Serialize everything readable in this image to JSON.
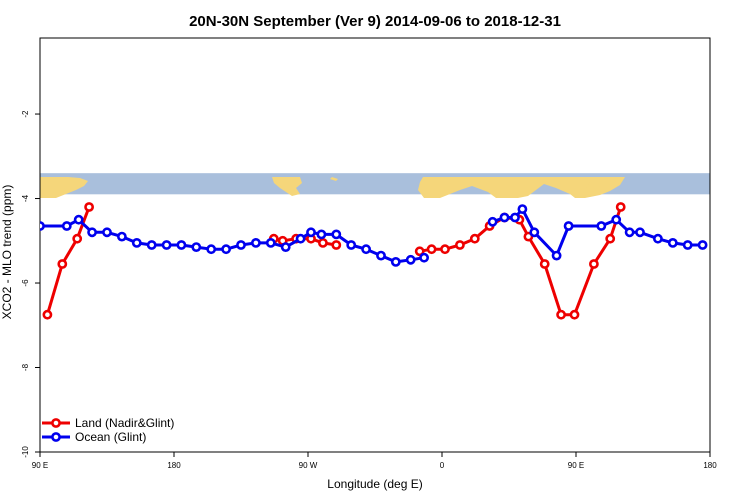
{
  "chart_data": {
    "type": "line",
    "title": "20N-30N September (Ver 9)   2014-09-06 to 2018-12-31",
    "xlabel": "Longitude (deg E)",
    "ylabel": "XCO2 - MLO trend (ppm)",
    "xlim": [
      90,
      540
    ],
    "ylim": [
      -10,
      -0.2
    ],
    "x_ticks": [
      {
        "value": 90,
        "label": "90 E"
      },
      {
        "value": 180,
        "label": "180"
      },
      {
        "value": 270,
        "label": "90 W"
      },
      {
        "value": 360,
        "label": "0"
      },
      {
        "value": 450,
        "label": "90 E"
      },
      {
        "value": 540,
        "label": "180"
      }
    ],
    "y_ticks": [
      {
        "value": -2,
        "label": "-2"
      },
      {
        "value": -4,
        "label": "-4"
      },
      {
        "value": -6,
        "label": "-6"
      },
      {
        "value": -8,
        "label": "-8"
      },
      {
        "value": -10,
        "label": "-10"
      }
    ],
    "map_strip": {
      "y_top": -3.4,
      "y_bottom": -3.9,
      "ocean_color": "#a9bfdc",
      "land_color": "#f5d67a"
    },
    "legend_position": "bottom-left",
    "series": [
      {
        "name": "Land (Nadir&Glint)",
        "color": "#ee0000",
        "segments": [
          [
            [
              95,
              -6.75
            ],
            [
              105,
              -5.55
            ],
            [
              115,
              -4.95
            ],
            [
              123,
              -4.2
            ]
          ],
          [
            [
              247,
              -4.95
            ],
            [
              253,
              -5.0
            ],
            [
              262,
              -4.95
            ],
            [
              272,
              -4.95
            ],
            [
              280,
              -5.05
            ],
            [
              289,
              -5.1
            ]
          ],
          [
            [
              345,
              -5.25
            ],
            [
              353,
              -5.2
            ],
            [
              362,
              -5.2
            ],
            [
              372,
              -5.1
            ],
            [
              382,
              -4.95
            ],
            [
              392,
              -4.65
            ],
            [
              402,
              -4.45
            ],
            [
              412,
              -4.5
            ],
            [
              418,
              -4.9
            ],
            [
              429,
              -5.55
            ],
            [
              440,
              -6.75
            ],
            [
              449,
              -6.75
            ],
            [
              462,
              -5.55
            ],
            [
              473,
              -4.95
            ],
            [
              480,
              -4.2
            ]
          ]
        ]
      },
      {
        "name": "Ocean (Glint)",
        "color": "#0000ee",
        "segments": [
          [
            [
              90,
              -4.65
            ],
            [
              108,
              -4.65
            ],
            [
              116,
              -4.5
            ],
            [
              125,
              -4.8
            ],
            [
              135,
              -4.8
            ],
            [
              145,
              -4.9
            ],
            [
              155,
              -5.05
            ],
            [
              165,
              -5.1
            ],
            [
              175,
              -5.1
            ],
            [
              185,
              -5.1
            ],
            [
              195,
              -5.15
            ],
            [
              205,
              -5.2
            ],
            [
              215,
              -5.2
            ],
            [
              225,
              -5.1
            ],
            [
              235,
              -5.05
            ],
            [
              245,
              -5.05
            ],
            [
              255,
              -5.15
            ],
            [
              265,
              -4.95
            ],
            [
              272,
              -4.8
            ],
            [
              279,
              -4.85
            ],
            [
              289,
              -4.85
            ],
            [
              299,
              -5.1
            ],
            [
              309,
              -5.2
            ],
            [
              319,
              -5.35
            ],
            [
              329,
              -5.5
            ],
            [
              339,
              -5.45
            ],
            [
              348,
              -5.4
            ]
          ],
          [
            [
              394,
              -4.55
            ],
            [
              402,
              -4.45
            ],
            [
              409,
              -4.45
            ],
            [
              414,
              -4.25
            ],
            [
              422,
              -4.8
            ],
            [
              437,
              -5.35
            ],
            [
              445,
              -4.65
            ],
            [
              467,
              -4.65
            ],
            [
              477,
              -4.5
            ],
            [
              486,
              -4.8
            ],
            [
              493,
              -4.8
            ],
            [
              505,
              -4.95
            ],
            [
              515,
              -5.05
            ],
            [
              525,
              -5.1
            ],
            [
              535,
              -5.1
            ]
          ]
        ]
      }
    ]
  }
}
